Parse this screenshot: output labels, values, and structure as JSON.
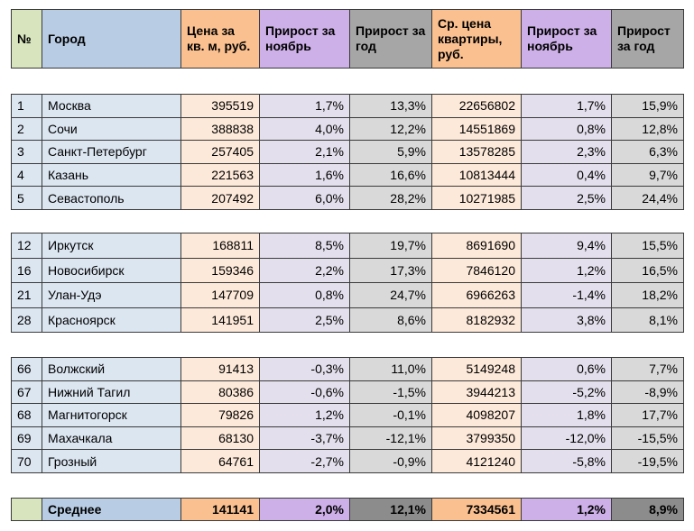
{
  "table": {
    "header": [
      "№",
      "Город",
      "Цена за кв. м, руб.",
      "Прирост за ноябрь",
      "Прирост за год",
      "Ср. цена квартиры, руб.",
      "Прирост за ноябрь",
      "Прирост за год"
    ],
    "groups": [
      [
        [
          "1",
          "Москва",
          "395519",
          "1,7%",
          "13,3%",
          "22656802",
          "1,7%",
          "15,9%"
        ],
        [
          "2",
          "Сочи",
          "388838",
          "4,0%",
          "12,2%",
          "14551869",
          "0,8%",
          "12,8%"
        ],
        [
          "3",
          "Санкт-Петербург",
          "257405",
          "2,1%",
          "5,9%",
          "13578285",
          "2,3%",
          "6,3%"
        ],
        [
          "4",
          "Казань",
          "221563",
          "1,6%",
          "16,6%",
          "10813444",
          "0,4%",
          "9,7%"
        ],
        [
          "5",
          "Севастополь",
          "207492",
          "6,0%",
          "28,2%",
          "10271985",
          "2,5%",
          "24,4%"
        ]
      ],
      [
        [
          "12",
          "Иркутск",
          "168811",
          "8,5%",
          "19,7%",
          "8691690",
          "9,4%",
          "15,5%"
        ],
        [
          "16",
          "Новосибирск",
          "159346",
          "2,2%",
          "17,3%",
          "7846120",
          "1,2%",
          "16,5%"
        ],
        [
          "21",
          "Улан-Удэ",
          "147709",
          "0,8%",
          "24,7%",
          "6966263",
          "-1,4%",
          "18,2%"
        ],
        [
          "28",
          "Красноярск",
          "141951",
          "2,5%",
          "8,6%",
          "8182932",
          "3,8%",
          "8,1%"
        ]
      ],
      [
        [
          "66",
          "Волжский",
          "91413",
          "-0,3%",
          "11,0%",
          "5149248",
          "0,6%",
          "7,7%"
        ],
        [
          "67",
          "Нижний Тагил",
          "80386",
          "-0,6%",
          "-1,5%",
          "3944213",
          "-5,2%",
          "-8,9%"
        ],
        [
          "68",
          "Магнитогорск",
          "79826",
          "1,2%",
          "-0,1%",
          "4098207",
          "1,8%",
          "17,7%"
        ],
        [
          "69",
          "Махачкала",
          "68130",
          "-3,7%",
          "-12,1%",
          "3799350",
          "-12,0%",
          "-15,5%"
        ],
        [
          "70",
          "Грозный",
          "64761",
          "-2,7%",
          "-0,9%",
          "4121240",
          "-5,8%",
          "-19,5%"
        ]
      ]
    ],
    "average": {
      "label": "Среднее",
      "values": [
        "141141",
        "2,0%",
        "12,1%",
        "7334561",
        "1,2%",
        "8,9%"
      ]
    }
  }
}
